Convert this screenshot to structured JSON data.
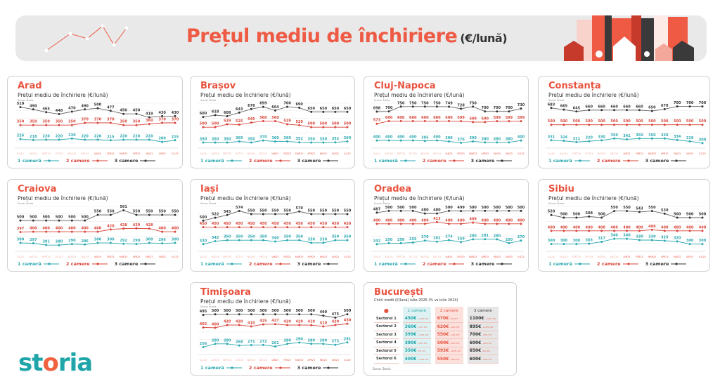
{
  "header": {
    "title": "Prețul mediu de închiriere",
    "unit": "(€/lună)"
  },
  "common": {
    "subtitle": "Prețul mediu de închiriere (€/lună)",
    "source": "Sursa: Storia",
    "legend": [
      "1 cameră",
      "2 camere",
      "3 camere"
    ]
  },
  "colors": {
    "one_room": "#2aa8b0",
    "two_rooms": "#d9453a",
    "three_rooms": "#333333",
    "accent": "#e8533f"
  },
  "chart_data": [
    {
      "type": "line",
      "title": "Arad",
      "categories": [
        "IUL24",
        "AUG24",
        "SEPT24",
        "OCT24",
        "NOV24",
        "DEC24",
        "IAN25",
        "FEB25",
        "MAR25",
        "APR25",
        "MAI25",
        "IUN25",
        "IUL25"
      ],
      "series": [
        {
          "name": "1 cameră",
          "values": [
            226,
            218,
            220,
            220,
            230,
            220,
            220,
            215,
            220,
            220,
            220,
            200,
            215
          ]
        },
        {
          "name": "2 camere",
          "values": [
            350,
            350,
            350,
            350,
            350,
            370,
            370,
            370,
            350,
            350,
            360,
            370,
            370
          ]
        },
        {
          "name": "3 camere",
          "values": [
            510,
            490,
            465,
            448,
            470,
            490,
            500,
            477,
            450,
            450,
            419,
            430,
            430
          ]
        }
      ]
    },
    {
      "type": "line",
      "title": "Brașov",
      "categories": [
        "IUL24",
        "AUG24",
        "SEPT24",
        "OCT24",
        "NOV24",
        "DEC24",
        "IAN25",
        "FEB25",
        "MAR25",
        "APR25",
        "MAI25",
        "IUN25",
        "IUL25"
      ],
      "series": [
        {
          "name": "1 cameră",
          "values": [
            350,
            350,
            350,
            360,
            350,
            370,
            360,
            360,
            352,
            350,
            350,
            352,
            360
          ]
        },
        {
          "name": "2 camere",
          "values": [
            500,
            500,
            529,
            525,
            545,
            560,
            560,
            529,
            520,
            500,
            500,
            500,
            500
          ]
        },
        {
          "name": "3 camere",
          "values": [
            600,
            618,
            608,
            643,
            678,
            699,
            664,
            700,
            690,
            650,
            650,
            650,
            650
          ]
        }
      ]
    },
    {
      "type": "line",
      "title": "Cluj-Napoca",
      "categories": [
        "IUL24",
        "AUG24",
        "SEPT24",
        "OCT24",
        "NOV24",
        "DEC24",
        "IAN25",
        "FEB25",
        "MAR25",
        "APR25",
        "MAI25",
        "IUN25",
        "IUL25"
      ],
      "series": [
        {
          "name": "1 cameră",
          "values": [
            400,
            400,
            400,
            400,
            395,
            400,
            390,
            376,
            390,
            380,
            380,
            380,
            400
          ]
        },
        {
          "name": "2 camere",
          "values": [
            573,
            600,
            600,
            600,
            600,
            600,
            600,
            599,
            590,
            590,
            599,
            599,
            599
          ]
        },
        {
          "name": "3 camere",
          "values": [
            698,
            700,
            750,
            750,
            750,
            750,
            749,
            728,
            750,
            700,
            700,
            700,
            730
          ]
        }
      ]
    },
    {
      "type": "line",
      "title": "Constanța",
      "categories": [
        "IUL24",
        "AUG24",
        "SEPT24",
        "OCT24",
        "NOV24",
        "DEC24",
        "IAN25",
        "FEB25",
        "MAR25",
        "APR25",
        "MAI25",
        "IUN25",
        "IUL25"
      ],
      "series": [
        {
          "name": "1 cameră",
          "values": [
            331,
            324,
            311,
            320,
            330,
            350,
            341,
            350,
            350,
            350,
            334,
            319,
            300
          ]
        },
        {
          "name": "2 camere",
          "values": [
            500,
            500,
            500,
            500,
            500,
            500,
            500,
            500,
            500,
            500,
            500,
            500,
            500
          ]
        },
        {
          "name": "3 camere",
          "values": [
            683,
            665,
            645,
            660,
            660,
            660,
            660,
            660,
            650,
            670,
            700,
            700,
            700
          ]
        }
      ]
    },
    {
      "type": "line",
      "title": "Craiova",
      "categories": [
        "IUL24",
        "AUG24",
        "SEPT24",
        "OCT24",
        "NOV24",
        "DEC24",
        "IAN25",
        "FEB25",
        "MAR25",
        "APR25",
        "MAI25",
        "IUN25",
        "IUL25"
      ],
      "series": [
        {
          "name": "1 cameră",
          "values": [
            300,
            297,
            281,
            280,
            290,
            286,
            300,
            300,
            292,
            290,
            300,
            296,
            300
          ]
        },
        {
          "name": "2 camere",
          "values": [
            397,
            400,
            400,
            400,
            400,
            400,
            400,
            420,
            428,
            430,
            428,
            400,
            400
          ]
        },
        {
          "name": "3 camere",
          "values": [
            500,
            500,
            500,
            500,
            500,
            500,
            550,
            550,
            591,
            550,
            550,
            550,
            550
          ]
        }
      ]
    },
    {
      "type": "line",
      "title": "Iași",
      "categories": [
        "IUL24",
        "AUG24",
        "SEPT24",
        "OCT24",
        "NOV24",
        "DEC24",
        "IAN25",
        "FEB25",
        "MAR25",
        "APR25",
        "MAI25",
        "IUN25",
        "IUL25"
      ],
      "series": [
        {
          "name": "1 cameră",
          "values": [
            320,
            342,
            350,
            350,
            350,
            350,
            340,
            350,
            350,
            330,
            330,
            350,
            350
          ]
        },
        {
          "name": "2 camere",
          "values": [
            450,
            450,
            450,
            450,
            450,
            450,
            450,
            450,
            450,
            450,
            450,
            450,
            450
          ]
        },
        {
          "name": "3 camere",
          "values": [
            500,
            522,
            543,
            574,
            550,
            550,
            550,
            550,
            570,
            550,
            550,
            550,
            550
          ]
        }
      ]
    },
    {
      "type": "line",
      "title": "Oradea",
      "categories": [
        "IUL24",
        "AUG24",
        "SEPT24",
        "OCT24",
        "NOV24",
        "DEC24",
        "IAN25",
        "FEB25",
        "MAR25",
        "APR25",
        "MAI25",
        "IUN25",
        "IUL25"
      ],
      "series": [
        {
          "name": "1 cameră",
          "values": [
            242,
            250,
            250,
            255,
            270,
            262,
            274,
            259,
            280,
            281,
            280,
            250,
            270
          ]
        },
        {
          "name": "2 camere",
          "values": [
            400,
            400,
            400,
            400,
            400,
            413,
            400,
            400,
            409,
            400,
            400,
            400,
            400
          ]
        },
        {
          "name": "3 camere",
          "values": [
            487,
            500,
            500,
            500,
            480,
            480,
            500,
            499,
            500,
            500,
            500,
            500,
            500
          ]
        }
      ]
    },
    {
      "type": "line",
      "title": "Sibiu",
      "categories": [
        "IUL24",
        "AUG24",
        "SEPT24",
        "OCT24",
        "NOV24",
        "DEC24",
        "IAN25",
        "FEB25",
        "MAR25",
        "APR25",
        "MAI25",
        "IUN25",
        "IUL25"
      ],
      "series": [
        {
          "name": "1 cameră",
          "values": [
            300,
            300,
            300,
            303,
            317,
            340,
            340,
            330,
            330,
            325,
            320,
            300,
            300
          ]
        },
        {
          "name": "2 camere",
          "values": [
            400,
            400,
            400,
            400,
            400,
            400,
            400,
            400,
            408,
            400,
            400,
            400,
            400
          ]
        },
        {
          "name": "3 camere",
          "values": [
            520,
            500,
            500,
            508,
            500,
            550,
            550,
            543,
            550,
            530,
            500,
            500,
            500
          ]
        }
      ]
    },
    {
      "type": "line",
      "title": "Timișoara",
      "categories": [
        "IUL24",
        "AUG24",
        "SEPT24",
        "OCT24",
        "NOV24",
        "DEC24",
        "IAN25",
        "FEB25",
        "MAR25",
        "APR25",
        "MAI25",
        "IUN25",
        "IUL25"
      ],
      "series": [
        {
          "name": "1 cameră",
          "values": [
            256,
            280,
            280,
            268,
            271,
            272,
            261,
            280,
            290,
            280,
            280,
            273,
            291
          ]
        },
        {
          "name": "2 camere",
          "values": [
            402,
            400,
            420,
            420,
            410,
            425,
            427,
            420,
            420,
            419,
            410,
            420,
            430
          ]
        },
        {
          "name": "3 camere",
          "values": [
            495,
            500,
            500,
            500,
            500,
            500,
            500,
            500,
            500,
            500,
            490,
            475,
            500
          ]
        }
      ]
    }
  ],
  "bucuresti": {
    "title": "București",
    "subtitle": "Chirii medii (€/lună) iulie 2025 (% vs iulie 2024)",
    "columns": [
      "1 cameră",
      "2 camere",
      "3 camere"
    ],
    "rows": [
      {
        "label": "Sectorul 1",
        "values": [
          "450€",
          "670€",
          "1100€"
        ],
        "changes": [
          "+12% YoY",
          "3% YoY",
          "+10% YoY"
        ]
      },
      {
        "label": "Sectorul 2",
        "values": [
          "360€",
          "620€",
          "895€"
        ],
        "changes": [
          "+3% YoY",
          "+2% YoY",
          "+12% YoY"
        ]
      },
      {
        "label": "Sectorul 3",
        "values": [
          "399€",
          "550€",
          "700€"
        ],
        "changes": [
          "+14% YoY",
          "+4% YoY",
          "+8% YoY"
        ]
      },
      {
        "label": "Sectorul 4",
        "values": [
          "380€",
          "500€",
          "600€"
        ],
        "changes": [
          "+8% YoY",
          "+5% YoY",
          "+9% YoY"
        ]
      },
      {
        "label": "Sectorul 5",
        "values": [
          "350€",
          "593€",
          "650€"
        ],
        "changes": [
          "0% YoY",
          "+12% YoY",
          "0% YoY"
        ]
      },
      {
        "label": "Sectorul 6",
        "values": [
          "400€",
          "550€",
          "600€"
        ],
        "changes": [
          "+14% YoY",
          "+6% YoY",
          "+9% YoY"
        ]
      }
    ],
    "source": "Sursa: Storia"
  },
  "logo": {
    "text_a": "st",
    "text_o": "o",
    "text_b": "ria"
  }
}
